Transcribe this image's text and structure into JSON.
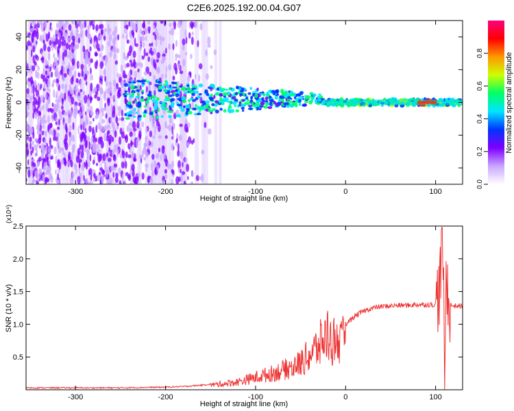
{
  "title": "C2E6.2025.192.00.04.G07",
  "chart_data": [
    {
      "type": "heatmap",
      "xlabel": "Height of straight line (km)",
      "ylabel": "Frequency (Hz)",
      "xlim": [
        -355,
        130
      ],
      "ylim": [
        -50,
        50
      ],
      "xticks": [
        -300,
        -200,
        -100,
        0,
        100
      ],
      "yticks": [
        -40,
        -20,
        0,
        20,
        40
      ],
      "colorbar": {
        "label": "Normalized spectral amplitude",
        "range": [
          0,
          1
        ],
        "ticks": [
          "0.0",
          "0.2",
          "0.4",
          "0.6",
          "0.8"
        ],
        "colors": [
          "#ffffff",
          "#c9a6ff",
          "#7f00ff",
          "#0033ff",
          "#00e5ff",
          "#00ff66",
          "#ccff00",
          "#ff9900",
          "#ff0000",
          "#ff007f"
        ]
      },
      "features": {
        "noise_region_x": [
          -355,
          -140
        ],
        "signal_center_hz": 0,
        "signal_onset_km": -245,
        "strong_band_x": [
          -25,
          130
        ],
        "peak_amplitude_x": [
          80,
          100
        ]
      }
    },
    {
      "type": "line",
      "xlabel": "Height of straight line (km)",
      "ylabel": "SNR (10 * v/v)",
      "scale_label": "(x10⁴)",
      "xlim": [
        -355,
        130
      ],
      "ylim": [
        0,
        2.5
      ],
      "xticks": [
        -300,
        -200,
        -100,
        0,
        100
      ],
      "yticks": [
        "0.5",
        "1.0",
        "1.5",
        "2.0",
        "2.5"
      ],
      "color": "#ee3333",
      "series": [
        {
          "x": [
            -355,
            -300,
            -250,
            -200,
            -180,
            -160,
            -140,
            -120,
            -100,
            -80,
            -60,
            -50,
            -40,
            -30,
            -25,
            -20,
            -15,
            -10,
            -5,
            0,
            10,
            20,
            30,
            40,
            50,
            60,
            70,
            80,
            90,
            100,
            105,
            108,
            110,
            112,
            115,
            120,
            130
          ],
          "y": [
            0.03,
            0.03,
            0.03,
            0.04,
            0.05,
            0.07,
            0.1,
            0.14,
            0.22,
            0.3,
            0.4,
            0.48,
            0.62,
            0.78,
            0.9,
            1.0,
            0.85,
            0.95,
            0.8,
            1.0,
            1.12,
            1.2,
            1.25,
            1.27,
            1.28,
            1.29,
            1.29,
            1.3,
            1.3,
            1.3,
            1.6,
            2.4,
            0.1,
            1.8,
            1.3,
            1.28,
            1.28
          ]
        }
      ]
    }
  ]
}
